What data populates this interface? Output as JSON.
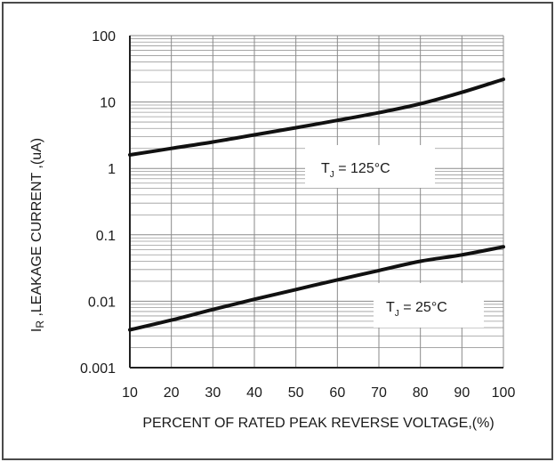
{
  "chart_data": {
    "type": "line",
    "title": "",
    "xlabel": "PERCENT OF RATED PEAK REVERSE VOLTAGE,(%)",
    "ylabel": {
      "symbol": "I",
      "subscript": "R",
      "text": " ,LEAKAGE  CURRENT ,(uA)"
    },
    "x_ticks": [
      "10",
      "20",
      "30",
      "40",
      "50",
      "60",
      "70",
      "80",
      "90",
      "100"
    ],
    "y_ticks": [
      {
        "value": 100,
        "label": "100"
      },
      {
        "value": 10,
        "label": "10"
      },
      {
        "value": 1,
        "label": "1"
      },
      {
        "value": 0.1,
        "label": "0.1"
      },
      {
        "value": 0.01,
        "label": "0.01"
      },
      {
        "value": 0.001,
        "label": "0.001"
      }
    ],
    "xlim": [
      10,
      100
    ],
    "ylim": [
      0.001,
      100
    ],
    "y_scale": "log",
    "grid": true,
    "series": [
      {
        "label_main": "T",
        "label_sub": "J",
        "label_rest": " = 125°C",
        "x": [
          10,
          20,
          30,
          40,
          50,
          60,
          70,
          80,
          90,
          100
        ],
        "y": [
          1.6,
          2.0,
          2.5,
          3.2,
          4.1,
          5.3,
          6.9,
          9.4,
          14.0,
          22.0
        ]
      },
      {
        "label_main": "T",
        "label_sub": "J",
        "label_rest": " = 25°C",
        "x": [
          10,
          20,
          30,
          40,
          50,
          60,
          70,
          80,
          90,
          100
        ],
        "y": [
          0.0037,
          0.0052,
          0.0075,
          0.0107,
          0.015,
          0.021,
          0.029,
          0.04,
          0.05,
          0.066
        ]
      }
    ]
  }
}
